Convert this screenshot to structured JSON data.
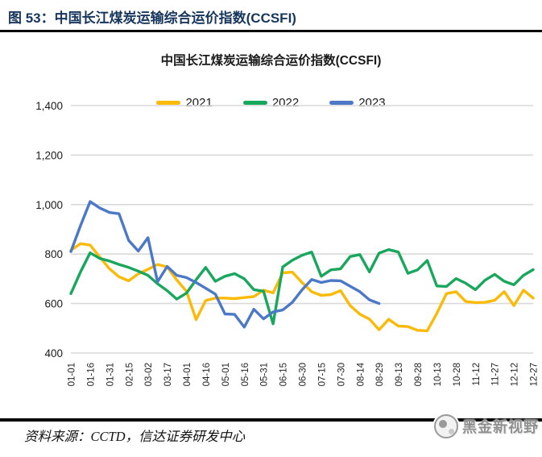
{
  "header": {
    "caption": "图 53：中国长江煤炭运输综合运价指数(CCSFI)"
  },
  "chart_data": {
    "type": "line",
    "title": "中国长江煤炭运输综合运价指数(CCSFI)",
    "grid": true,
    "legend_position": "top",
    "ylim": [
      400,
      1400
    ],
    "yticks": [
      400,
      600,
      800,
      1000,
      1200,
      1400
    ],
    "ytick_labels": [
      "400",
      "600",
      "800",
      "1,000",
      "1,200",
      "1,400"
    ],
    "x_tick_labels": [
      "01-01",
      "01-16",
      "01-31",
      "02-15",
      "03-02",
      "03-17",
      "04-01",
      "04-16",
      "05-01",
      "05-16",
      "05-31",
      "06-15",
      "06-30",
      "07-15",
      "07-30",
      "08-14",
      "08-29",
      "09-13",
      "09-28",
      "10-13",
      "10-28",
      "11-12",
      "11-27",
      "12-12",
      "12-27"
    ],
    "points_per_tick_interval": 2,
    "series": [
      {
        "name": "2021",
        "color": "#FBBA07",
        "values": [
          815,
          842,
          836,
          788,
          741,
          708,
          692,
          720,
          738,
          758,
          748,
          695,
          650,
          535,
          612,
          622,
          622,
          620,
          624,
          628,
          654,
          643,
          724,
          727,
          685,
          648,
          633,
          636,
          652,
          592,
          557,
          537,
          494,
          536,
          509,
          507,
          492,
          490,
          560,
          640,
          648,
          608,
          604,
          605,
          613,
          648,
          592,
          654,
          622
        ]
      },
      {
        "name": "2022",
        "color": "#18A75C",
        "values": [
          640,
          728,
          805,
          782,
          772,
          758,
          746,
          731,
          714,
          680,
          652,
          618,
          642,
          696,
          746,
          690,
          710,
          721,
          700,
          656,
          650,
          518,
          748,
          775,
          795,
          808,
          710,
          736,
          740,
          790,
          798,
          728,
          804,
          818,
          808,
          722,
          736,
          774,
          671,
          669,
          701,
          682,
          656,
          694,
          718,
          690,
          676,
          714,
          737
        ]
      },
      {
        "name": "2023",
        "color": "#4C78C8",
        "values": [
          810,
          915,
          1012,
          986,
          968,
          963,
          855,
          812,
          866,
          688,
          750,
          714,
          705,
          685,
          662,
          638,
          558,
          556,
          505,
          577,
          538,
          566,
          574,
          605,
          655,
          697,
          685,
          693,
          692,
          670,
          648,
          615,
          600,
          null,
          null,
          null,
          null,
          null,
          null,
          null,
          null,
          null,
          null,
          null,
          null,
          null,
          null,
          null,
          null
        ]
      }
    ]
  },
  "footer": {
    "source": "资料来源：CCTD，信达证券研发中心",
    "watermark": "黑金新视野"
  }
}
